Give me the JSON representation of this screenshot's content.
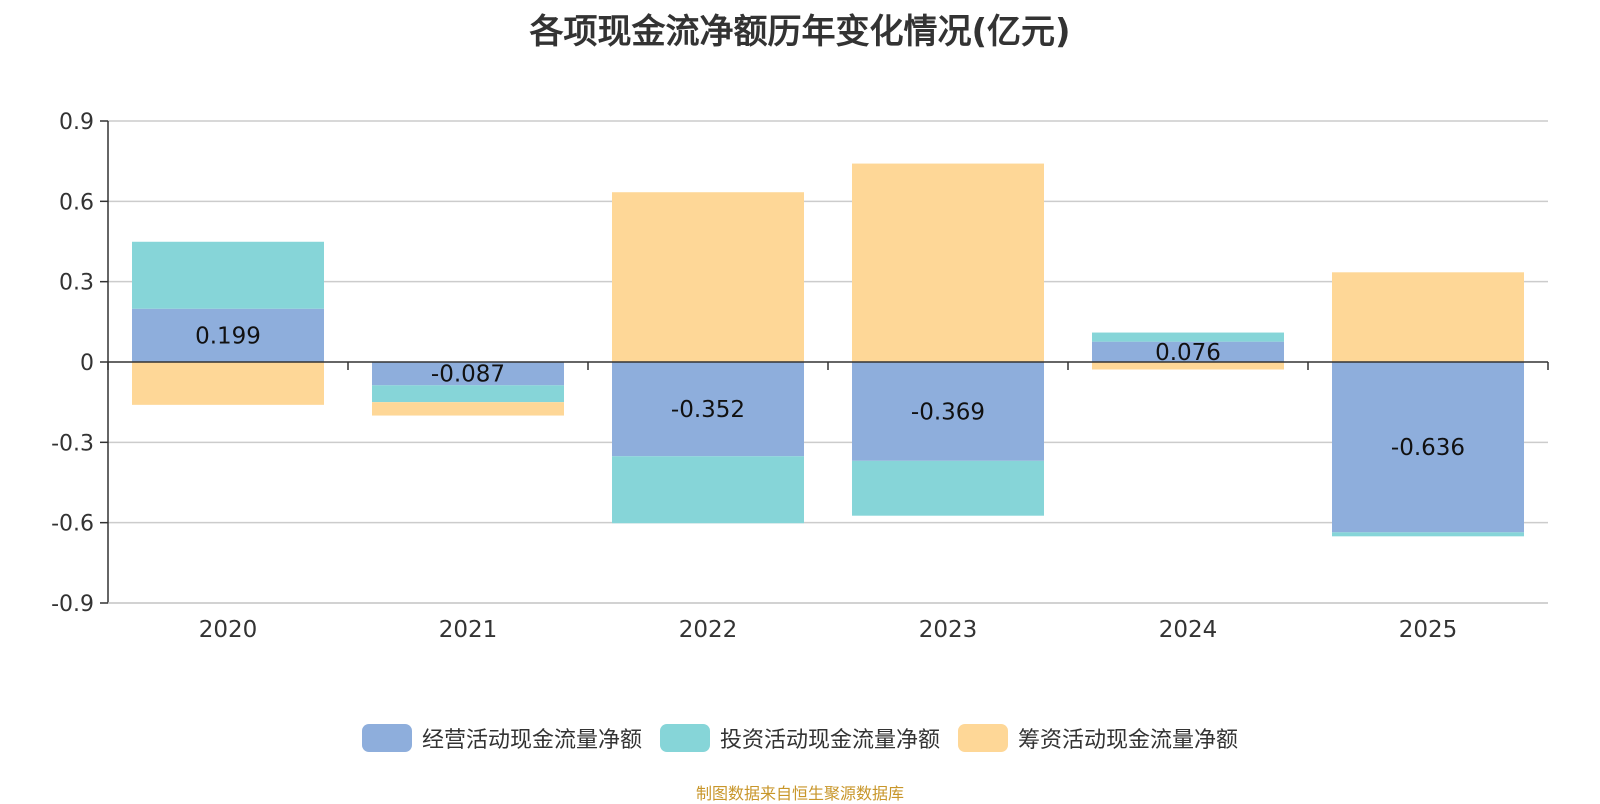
{
  "chart_data": {
    "type": "bar",
    "stacked": true,
    "title": "各项现金流净额历年变化情况(亿元)",
    "categories": [
      "2020",
      "2021",
      "2022",
      "2023",
      "2024",
      "2025"
    ],
    "ylim": [
      -0.9,
      0.9
    ],
    "yticks": [
      "0.9",
      "0.6",
      "0.3",
      "0",
      "-0.3",
      "-0.6",
      "-0.9"
    ],
    "ytick_values": [
      0.9,
      0.6,
      0.3,
      0,
      -0.3,
      -0.6,
      -0.9
    ],
    "grid": true,
    "legend_position": "bottom",
    "series": [
      {
        "name": "经营活动现金流量净额",
        "color": "#8eaedc",
        "values": [
          0.199,
          -0.087,
          -0.352,
          -0.369,
          0.076,
          -0.636
        ],
        "labels": [
          "0.199",
          "-0.087",
          "-0.352",
          "-0.369",
          "0.076",
          "-0.636"
        ]
      },
      {
        "name": "投资活动现金流量净额",
        "color": "#86d5d8",
        "values": [
          0.25,
          -0.063,
          -0.25,
          -0.205,
          0.034,
          -0.015
        ]
      },
      {
        "name": "筹资活动现金流量净额",
        "color": "#fed797",
        "values": [
          -0.16,
          -0.05,
          0.634,
          0.741,
          -0.028,
          0.335
        ]
      }
    ]
  },
  "source": "制图数据来自恒生聚源数据库"
}
